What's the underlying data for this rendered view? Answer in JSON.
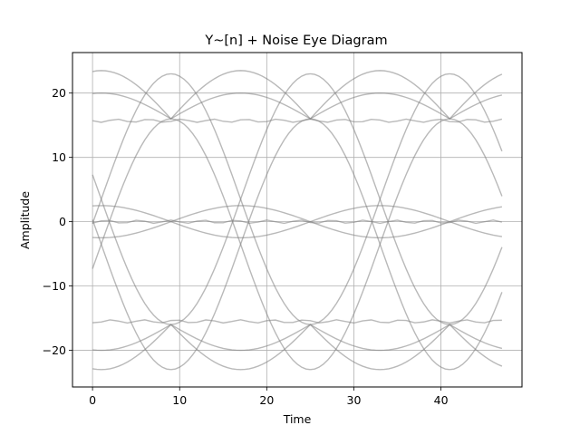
{
  "chart_data": {
    "type": "line",
    "title": "Y~[n] + Noise Eye Diagram",
    "xlabel": "Time",
    "ylabel": "Amplitude",
    "xlim": [
      -2.3,
      49.3
    ],
    "ylim": [
      -25.7,
      26.3
    ],
    "xticks": [
      0,
      10,
      20,
      30,
      40
    ],
    "yticks": [
      -20,
      -10,
      0,
      10,
      20
    ],
    "xtick_labels": [
      "0",
      "10",
      "20",
      "30",
      "40"
    ],
    "ytick_labels": [
      "−20",
      "−10",
      "0",
      "10",
      "20"
    ],
    "grid": true,
    "trace_color": "#808080",
    "symbol_period": 16,
    "first_crossing_time": 9,
    "x": [
      0,
      47
    ],
    "series": [
      {
        "type": "transition",
        "start": -23,
        "end": 16,
        "seg_start": -7
      },
      {
        "type": "transition",
        "start": -23,
        "end": 16,
        "seg_start": 9
      },
      {
        "type": "transition",
        "start": -23,
        "end": 16,
        "seg_start": 25
      },
      {
        "type": "transition",
        "start": -23,
        "end": 16,
        "seg_start": 41
      },
      {
        "type": "transition",
        "start": 16,
        "end": -23,
        "seg_start": -7
      },
      {
        "type": "transition",
        "start": 16,
        "end": -23,
        "seg_start": 9
      },
      {
        "type": "transition",
        "start": 16,
        "end": -23,
        "seg_start": 25
      },
      {
        "type": "transition",
        "start": 16,
        "end": -23,
        "seg_start": 41
      },
      {
        "type": "transition",
        "start": -16,
        "end": 23,
        "seg_start": -7
      },
      {
        "type": "transition",
        "start": -16,
        "end": 23,
        "seg_start": 9
      },
      {
        "type": "transition",
        "start": -16,
        "end": 23,
        "seg_start": 25
      },
      {
        "type": "transition",
        "start": -16,
        "end": 23,
        "seg_start": 41
      },
      {
        "type": "transition",
        "start": 23,
        "end": -16,
        "seg_start": -7
      },
      {
        "type": "transition",
        "start": 23,
        "end": -16,
        "seg_start": 9
      },
      {
        "type": "transition",
        "start": 23,
        "end": -16,
        "seg_start": 25
      },
      {
        "type": "transition",
        "start": 23,
        "end": -16,
        "seg_start": 41
      },
      {
        "type": "arc",
        "base": 16,
        "peak": 23.5
      },
      {
        "type": "arc",
        "base": 16,
        "peak": 20
      },
      {
        "type": "arc",
        "base": -16,
        "peak": -23
      },
      {
        "type": "arc",
        "base": -16,
        "peak": -20
      },
      {
        "type": "arc",
        "base": 0,
        "peak": 2.5
      },
      {
        "type": "arc",
        "base": 0,
        "peak": -2.5
      },
      {
        "type": "flat",
        "level": 15.7
      },
      {
        "type": "flat",
        "level": -15.5
      },
      {
        "type": "flat",
        "level": 0
      }
    ]
  }
}
